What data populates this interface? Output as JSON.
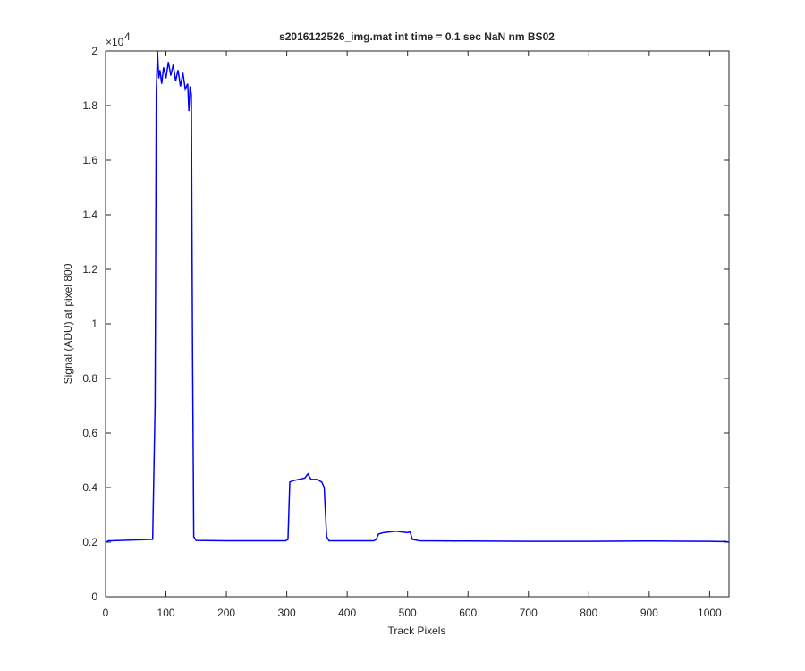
{
  "chart_data": {
    "type": "line",
    "title": "s2016122526_img.mat int time = 0.1 sec  NaN nm BS02",
    "x_label": "Track Pixels",
    "y_label": "Signal (ADU) at pixel 800",
    "y_multiplier": {
      "base": "×10",
      "exponent": "4"
    },
    "x": [
      0,
      5,
      10,
      78,
      82,
      84,
      86,
      88,
      90,
      93,
      96,
      100,
      104,
      108,
      112,
      116,
      120,
      124,
      128,
      132,
      136,
      138,
      140,
      142,
      144,
      146,
      150,
      200,
      298,
      302,
      305,
      310,
      320,
      330,
      335,
      340,
      350,
      358,
      362,
      366,
      370,
      420,
      444,
      448,
      452,
      460,
      480,
      500,
      504,
      508,
      520,
      600,
      700,
      800,
      900,
      1000,
      1020,
      1025,
      1032
    ],
    "series": [
      {
        "color": "#0000ff",
        "values": [
          2000,
          2050,
          2050,
          2100,
          7000,
          18500,
          20000,
          19000,
          19300,
          18800,
          19400,
          19000,
          19600,
          19100,
          19500,
          18900,
          19300,
          18700,
          19200,
          18600,
          18800,
          17800,
          18700,
          18400,
          9000,
          2200,
          2060,
          2050,
          2050,
          2100,
          4200,
          4250,
          4300,
          4350,
          4500,
          4300,
          4300,
          4200,
          4000,
          2200,
          2050,
          2050,
          2050,
          2100,
          2300,
          2350,
          2400,
          2350,
          2380,
          2100,
          2050,
          2040,
          2030,
          2030,
          2040,
          2030,
          2020,
          2030,
          2000
        ]
      }
    ],
    "xlim": [
      0,
      1032
    ],
    "xticks": [
      0,
      100,
      200,
      300,
      400,
      500,
      600,
      700,
      800,
      900,
      1000
    ],
    "ylim": [
      0,
      20000
    ],
    "yticks": [
      {
        "value": 0,
        "label": "0"
      },
      {
        "value": 2000,
        "label": "0.2"
      },
      {
        "value": 4000,
        "label": "0.4"
      },
      {
        "value": 6000,
        "label": "0.6"
      },
      {
        "value": 8000,
        "label": "0.8"
      },
      {
        "value": 10000,
        "label": "1"
      },
      {
        "value": 12000,
        "label": "1.2"
      },
      {
        "value": 14000,
        "label": "1.4"
      },
      {
        "value": 16000,
        "label": "1.6"
      },
      {
        "value": 18000,
        "label": "1.8"
      },
      {
        "value": 20000,
        "label": "2"
      }
    ],
    "grid": false
  }
}
